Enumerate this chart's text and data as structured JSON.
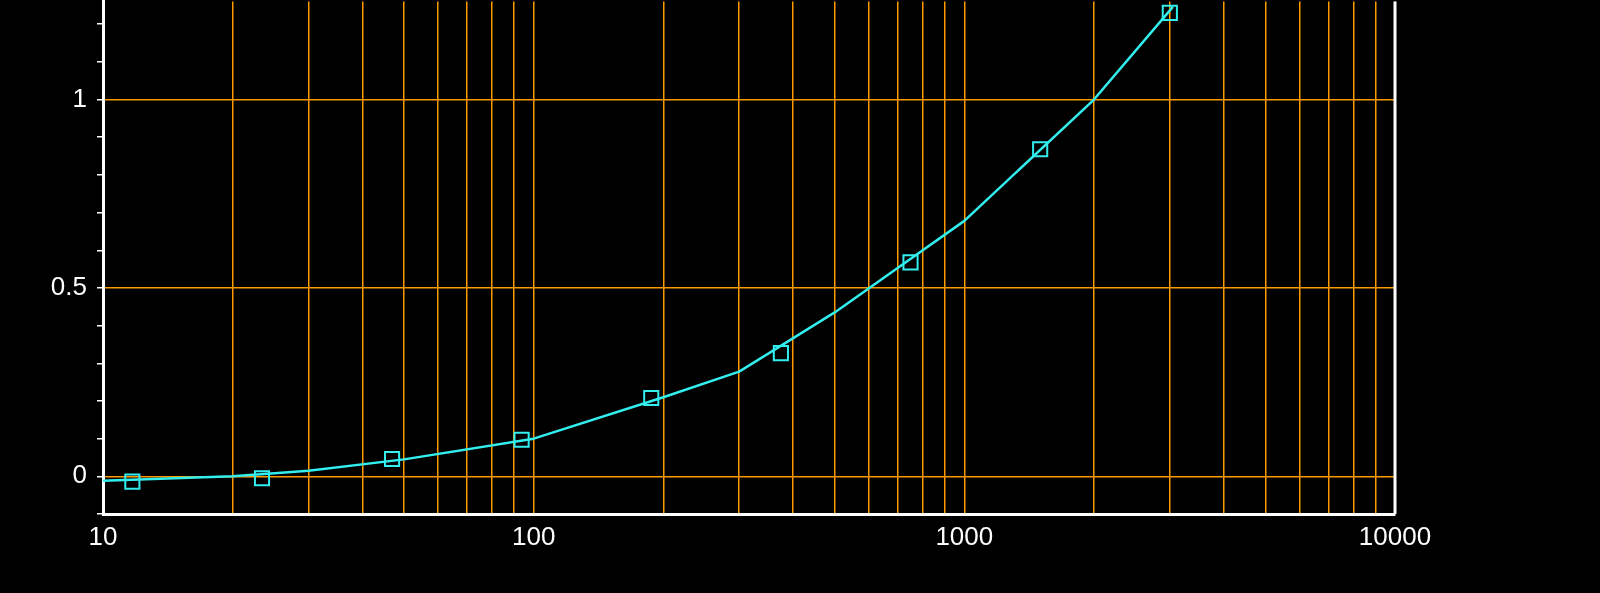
{
  "chart_data": {
    "type": "scatter",
    "log": "x",
    "grid": true,
    "legend": false,
    "xlim": [
      10,
      10000
    ],
    "ylim": [
      -0.1,
      1.26
    ],
    "xticks": [
      10,
      {
        "value": 20,
        "label": null
      },
      {
        "value": 30,
        "label": null
      },
      {
        "value": 40,
        "label": null
      },
      {
        "value": 50,
        "label": null
      },
      {
        "value": 60,
        "label": null
      },
      {
        "value": 70,
        "label": null
      },
      {
        "value": 80,
        "label": null
      },
      {
        "value": 90,
        "label": null
      },
      100,
      {
        "value": 200,
        "label": null
      },
      {
        "value": 300,
        "label": null
      },
      {
        "value": 400,
        "label": null
      },
      {
        "value": 500,
        "label": null
      },
      {
        "value": 600,
        "label": null
      },
      {
        "value": 700,
        "label": null
      },
      {
        "value": 800,
        "label": null
      },
      {
        "value": 900,
        "label": null
      },
      1000,
      {
        "value": 2000,
        "label": null
      },
      {
        "value": 3000,
        "label": null
      },
      {
        "value": 4000,
        "label": null
      },
      {
        "value": 5000,
        "label": null
      },
      {
        "value": 6000,
        "label": null
      },
      {
        "value": 7000,
        "label": null
      },
      {
        "value": 8000,
        "label": null
      },
      {
        "value": 9000,
        "label": null
      },
      10000
    ],
    "yticks": [
      {
        "value": -0.1,
        "label": null
      },
      0,
      {
        "value": 0.1,
        "label": null
      },
      {
        "value": 0.2,
        "label": null
      },
      {
        "value": 0.3,
        "label": null
      },
      {
        "value": 0.4,
        "label": null
      },
      0.5,
      {
        "value": 0.6,
        "label": null
      },
      {
        "value": 0.7,
        "label": null
      },
      {
        "value": 0.8,
        "label": null
      },
      {
        "value": 0.9,
        "label": null
      },
      1,
      {
        "value": 1.1,
        "label": null
      },
      {
        "value": 1.2,
        "label": null
      }
    ],
    "series": [
      {
        "type": "line",
        "marker": "none",
        "line_style": "solid",
        "color": "#33eeee",
        "x": [
          10,
          20,
          30,
          50,
          100,
          200,
          300,
          500,
          1000,
          2000,
          3050
        ],
        "values": [
          -0.012,
          0.0,
          0.015,
          0.045,
          0.1,
          0.21,
          0.278,
          0.435,
          0.678,
          1.0,
          1.246
        ]
      },
      {
        "type": "scatter",
        "marker": "square",
        "color": "#33eeee",
        "x": [
          11.7,
          23.4,
          46.9,
          93.75,
          187.5,
          375,
          750,
          1500,
          3000
        ],
        "values": [
          -0.014,
          -0.005,
          0.046,
          0.097,
          0.208,
          0.327,
          0.568,
          0.868,
          1.23
        ]
      }
    ]
  }
}
